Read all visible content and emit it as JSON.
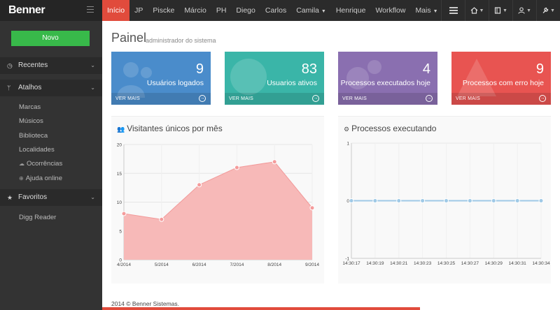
{
  "brand": {
    "name": "Benner"
  },
  "nav": [
    {
      "label": "Início",
      "active": true
    },
    {
      "label": "JP"
    },
    {
      "label": "Piscke"
    },
    {
      "label": "Márcio"
    },
    {
      "label": "PH"
    },
    {
      "label": "Diego"
    },
    {
      "label": "Carlos"
    },
    {
      "label": "Camila",
      "dropdown": true
    },
    {
      "label": "Henrique"
    },
    {
      "label": "Workflow"
    },
    {
      "label": "Mais",
      "dropdown": true
    }
  ],
  "toolbar_icons": [
    "list-icon",
    "home-icon",
    "book-icon",
    "user-icon",
    "wrench-icon"
  ],
  "sidebar": {
    "new_button": "Novo",
    "sections": [
      {
        "label": "Recentes",
        "icon": "clock-icon"
      },
      {
        "label": "Atalhos",
        "icon": "branch-icon"
      },
      {
        "label": "Favoritos",
        "icon": "star-icon"
      }
    ],
    "atalhos": [
      "Marcas",
      "Músicos",
      "Biblioteca",
      "Localidades",
      "Ocorrências",
      "Ajuda online"
    ],
    "favoritos": [
      "Digg Reader"
    ]
  },
  "page": {
    "title": "Painel",
    "subtitle": "administrador do sistema"
  },
  "cards": [
    {
      "value": "9",
      "label": "Usuários logados",
      "more": "VER MAIS",
      "color": "#4a8ccb"
    },
    {
      "value": "83",
      "label": "Usuarios ativos",
      "more": "VER MAIS",
      "color": "#3ab5a8"
    },
    {
      "value": "4",
      "label": "Processos executados hoje",
      "more": "VER MAIS",
      "color": "#8a6fb0"
    },
    {
      "value": "9",
      "label": "Processos com erro hoje",
      "more": "VER MAIS",
      "color": "#e85451"
    }
  ],
  "chart_data": [
    {
      "type": "area",
      "title": "Visitantes únicos por mês",
      "categories": [
        "4/2014",
        "5/2014",
        "6/2014",
        "7/2014",
        "8/2014",
        "9/2014"
      ],
      "values": [
        8,
        7,
        13,
        16,
        17,
        9
      ],
      "ylim": [
        0,
        20
      ],
      "yticks": [
        0,
        5,
        10,
        15,
        20
      ],
      "color": "#f7b9b8",
      "grid": true
    },
    {
      "type": "line",
      "title": "Processos executando",
      "categories": [
        "14:30:17",
        "14:30:19",
        "14:30:21",
        "14:30:23",
        "14:30:25",
        "14:30:27",
        "14:30:29",
        "14:30:31",
        "14:30:34"
      ],
      "values": [
        0,
        0,
        0,
        0,
        0,
        0,
        0,
        0,
        0
      ],
      "ylim": [
        -1,
        1
      ],
      "yticks": [
        -1,
        0,
        1
      ],
      "color": "#9fc9e6",
      "grid": true
    }
  ],
  "footer": {
    "text": "2014 © Benner Sistemas."
  }
}
